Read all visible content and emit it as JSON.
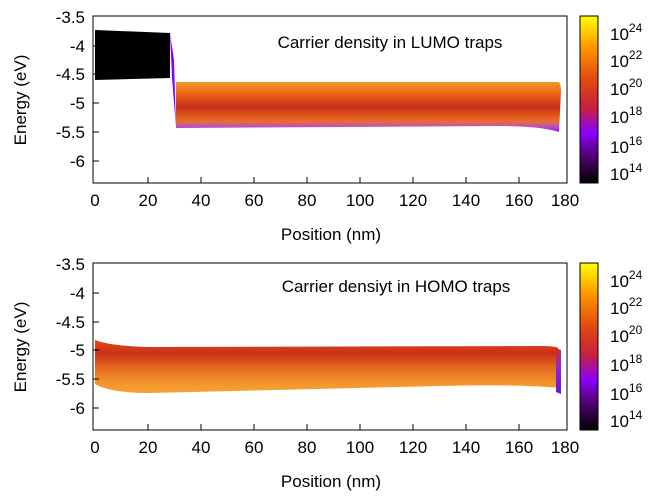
{
  "chart_data": [
    {
      "type": "heatmap",
      "title": "Carrier density in LUMO traps",
      "xlabel": "Position (nm)",
      "ylabel": "Energy (eV)",
      "xlim": [
        0,
        180
      ],
      "ylim": [
        -6.2,
        -3.5
      ],
      "xticks": [
        "0",
        "20",
        "40",
        "60",
        "80",
        "100",
        "120",
        "140",
        "160",
        "180"
      ],
      "yticks": [
        "-3.5",
        "-4",
        "-4.5",
        "-5",
        "-5.5",
        "-6"
      ],
      "colorbar": {
        "scale": "log",
        "range": [
          100000000000000.0,
          1e+25
        ],
        "palette": [
          "#000000",
          "#8000ff",
          "#d92020",
          "#ff9a00",
          "#ffff00"
        ],
        "ticks": [
          {
            "base": "10",
            "exp": "14"
          },
          {
            "base": "10",
            "exp": "16"
          },
          {
            "base": "10",
            "exp": "18"
          },
          {
            "base": "10",
            "exp": "20"
          },
          {
            "base": "10",
            "exp": "22"
          },
          {
            "base": "10",
            "exp": "24"
          }
        ]
      },
      "regions": [
        {
          "x": [
            0,
            29
          ],
          "e_top": -3.75,
          "e_bottom": -4.6,
          "density": "1e14"
        },
        {
          "x": [
            29,
            31
          ],
          "e_top": -3.85,
          "e_bottom": -5.42,
          "density": "1e16"
        },
        {
          "x": [
            31,
            178
          ],
          "e_top": -4.65,
          "e_bottom": -5.45,
          "peak_energy": -5.1,
          "peak_density": "1e20",
          "edge_density": "1e22",
          "bottom_density": "1e16"
        }
      ]
    },
    {
      "type": "heatmap",
      "title": "Carrier densiyt in HOMO traps",
      "xlabel": "Position (nm)",
      "ylabel": "Energy (eV)",
      "xlim": [
        0,
        180
      ],
      "ylim": [
        -6.2,
        -3.5
      ],
      "xticks": [
        "0",
        "20",
        "40",
        "60",
        "80",
        "100",
        "120",
        "140",
        "160",
        "180"
      ],
      "yticks": [
        "-3.5",
        "-4",
        "-4.5",
        "-5",
        "-5.5",
        "-6"
      ],
      "colorbar": {
        "scale": "log",
        "range": [
          100000000000000.0,
          1e+25
        ],
        "palette": [
          "#000000",
          "#8000ff",
          "#d92020",
          "#ff9a00",
          "#ffff00"
        ],
        "ticks": [
          {
            "base": "10",
            "exp": "14"
          },
          {
            "base": "10",
            "exp": "16"
          },
          {
            "base": "10",
            "exp": "18"
          },
          {
            "base": "10",
            "exp": "20"
          },
          {
            "base": "10",
            "exp": "22"
          },
          {
            "base": "10",
            "exp": "24"
          }
        ]
      },
      "regions": [
        {
          "x": [
            0,
            178
          ],
          "e_top": -4.95,
          "e_bottom": -5.75,
          "peak_energy": -5.2,
          "peak_density": "1e20",
          "edge_density": "1e22",
          "right_edge_density": "1e17"
        }
      ]
    }
  ]
}
